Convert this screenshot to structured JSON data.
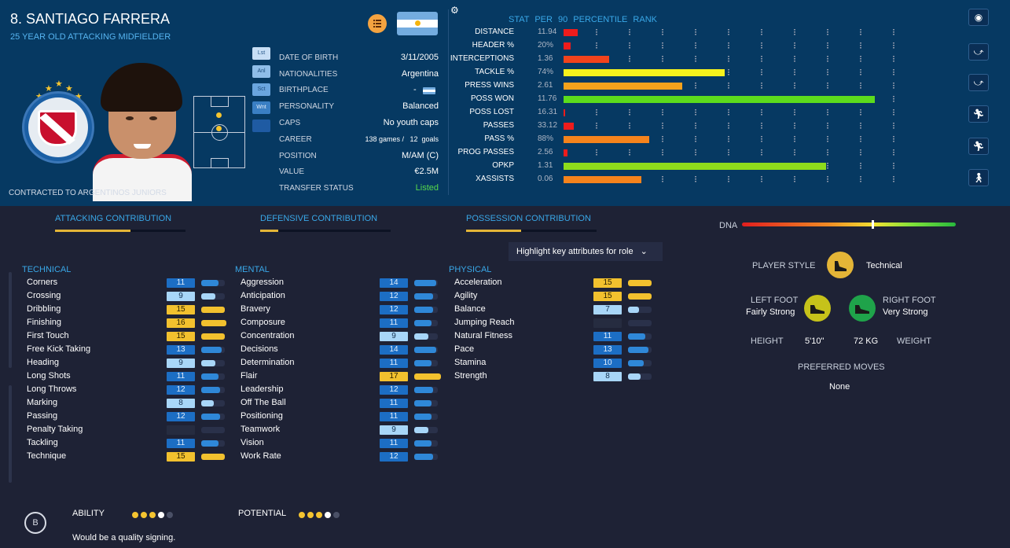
{
  "player": {
    "name": "8. SANTIAGO FARRERA",
    "subtitle": "25 YEAR OLD ATTACKING MIDFIELDER",
    "contract": "CONTRACTED TO ARGENTINOS JUNIORS",
    "club_crest_text": "ASOCIACION ATLETICA ARGENTINOS JUNIORS"
  },
  "position_pills": [
    "Lst",
    "Anl",
    "Sct",
    "Wnt",
    ""
  ],
  "info_rows": [
    {
      "label": "DATE OF BIRTH",
      "value": "3/11/2005"
    },
    {
      "label": "NATIONALITIES",
      "value": "Argentina"
    },
    {
      "label": "BIRTHPLACE",
      "value": "-"
    },
    {
      "label": "PERSONALITY",
      "value": "Balanced"
    },
    {
      "label": "CAPS",
      "value": "No youth caps"
    },
    {
      "label": "CAREER",
      "value": "138 games /   12  goals"
    },
    {
      "label": "POSITION",
      "value": "M/AM (C)"
    },
    {
      "label": "VALUE",
      "value": "€2.5M"
    },
    {
      "label": "TRANSFER STATUS",
      "value": "Listed"
    }
  ],
  "stats": {
    "header": "STAT  PER 90  PERCENTILE RANK",
    "rows": [
      {
        "name": "DISTANCE",
        "value": "11.94",
        "percentile": 4.6,
        "color": "#ee1c1c"
      },
      {
        "name": "HEADER %",
        "value": "20%",
        "percentile": 2.3,
        "color": "#ee1c1c"
      },
      {
        "name": "INTERCEPTIONS",
        "value": "1.36",
        "percentile": 14.6,
        "color": "#f2431c"
      },
      {
        "name": "TACKLE %",
        "value": "74%",
        "percentile": 51.7,
        "color": "#f6f21c"
      },
      {
        "name": "PRESS WINS",
        "value": "2.61",
        "percentile": 38.1,
        "color": "#f4a21c"
      },
      {
        "name": "POSS WON",
        "value": "11.76",
        "percentile": 100,
        "color": "#5cdc1c"
      },
      {
        "name": "POSS LOST",
        "value": "16.31",
        "percentile": 0.5,
        "color": "#ee1c1c"
      },
      {
        "name": "PASSES",
        "value": "33.12",
        "percentile": 3.2,
        "color": "#ee1c1c"
      },
      {
        "name": "PASS %",
        "value": "88%",
        "percentile": 27.5,
        "color": "#f5831c"
      },
      {
        "name": "PROG PASSES",
        "value": "2.56",
        "percentile": 1.3,
        "color": "#ee1c1c"
      },
      {
        "name": "OPKP",
        "value": "1.31",
        "percentile": 84.3,
        "color": "#8edc1c"
      },
      {
        "name": "XASSISTS",
        "value": "0.06",
        "percentile": 25.1,
        "color": "#f5831c"
      }
    ]
  },
  "contributions": [
    {
      "label": "ATTACKING CONTRIBUTION",
      "fraction": 0.58
    },
    {
      "label": "DEFENSIVE CONTRIBUTION",
      "fraction": 0.14
    },
    {
      "label": "POSSESSION CONTRIBUTION",
      "fraction": 0.42
    }
  ],
  "dna": {
    "label": "DNA",
    "level": 0.61
  },
  "highlight_dropdown": "Highlight key attributes for role",
  "attributes": {
    "technical": {
      "title": "TECHNICAL",
      "items": [
        {
          "name": "Corners",
          "value": "11"
        },
        {
          "name": "Crossing",
          "value": "9"
        },
        {
          "name": "Dribbling",
          "value": "15"
        },
        {
          "name": "Finishing",
          "value": "16"
        },
        {
          "name": "First Touch",
          "value": "15"
        },
        {
          "name": "Free Kick Taking",
          "value": "13"
        },
        {
          "name": "Heading",
          "value": "9"
        },
        {
          "name": "Long Shots",
          "value": "11"
        },
        {
          "name": "Long Throws",
          "value": "12"
        },
        {
          "name": "Marking",
          "value": "8"
        },
        {
          "name": "Passing",
          "value": "12"
        },
        {
          "name": "Penalty Taking",
          "value": ""
        },
        {
          "name": "Tackling",
          "value": "11"
        },
        {
          "name": "Technique",
          "value": "15"
        }
      ]
    },
    "mental": {
      "title": "MENTAL",
      "items": [
        {
          "name": "Aggression",
          "value": "14"
        },
        {
          "name": "Anticipation",
          "value": "12"
        },
        {
          "name": "Bravery",
          "value": "12"
        },
        {
          "name": "Composure",
          "value": "11"
        },
        {
          "name": "Concentration",
          "value": "9"
        },
        {
          "name": "Decisions",
          "value": "14"
        },
        {
          "name": "Determination",
          "value": "11"
        },
        {
          "name": "Flair",
          "value": "17"
        },
        {
          "name": "Leadership",
          "value": "12"
        },
        {
          "name": "Off The Ball",
          "value": "11"
        },
        {
          "name": "Positioning",
          "value": "11"
        },
        {
          "name": "Teamwork",
          "value": "9"
        },
        {
          "name": "Vision",
          "value": "11"
        },
        {
          "name": "Work Rate",
          "value": "12"
        }
      ]
    },
    "physical": {
      "title": "PHYSICAL",
      "items": [
        {
          "name": "Acceleration",
          "value": "15"
        },
        {
          "name": "Agility",
          "value": "15"
        },
        {
          "name": "Balance",
          "value": "7"
        },
        {
          "name": "Jumping Reach",
          "value": ""
        },
        {
          "name": "Natural Fitness",
          "value": "11"
        },
        {
          "name": "Pace",
          "value": "13"
        },
        {
          "name": "Stamina",
          "value": "10"
        },
        {
          "name": "Strength",
          "value": "8"
        }
      ]
    }
  },
  "profile": {
    "player_style_label": "PLAYER STYLE",
    "player_style_value": "Technical",
    "left_foot_label": "LEFT FOOT",
    "left_foot_value": "Fairly Strong",
    "right_foot_label": "RIGHT FOOT",
    "right_foot_value": "Very Strong",
    "height_label": "HEIGHT",
    "height_value": "5'10\"",
    "weight_value": "72 KG",
    "weight_label": "WEIGHT",
    "preferred_moves_label": "PREFERRED MOVES",
    "preferred_moves_value": "None"
  },
  "scout": {
    "grade": "B",
    "ability_label": "ABILITY",
    "ability_stars": 4,
    "potential_label": "POTENTIAL",
    "potential_stars": 4,
    "max_stars": 5,
    "comment": "Would be a quality signing."
  },
  "icons": {
    "role_icon": "role-list-icon",
    "flag": "argentina-flag-icon",
    "settings": "gear-icon",
    "side_buttons": [
      "profile-icon",
      "slide-tackle-icon",
      "slide-tackle-icon",
      "running-icon",
      "running-icon",
      "walking-icon"
    ],
    "style": "boot-icon"
  },
  "colors": {
    "panel": "#063962",
    "background": "#1e2235",
    "accent_blue": "#39a8e8",
    "gold": "#f4c430",
    "green": "#2ecc40"
  }
}
